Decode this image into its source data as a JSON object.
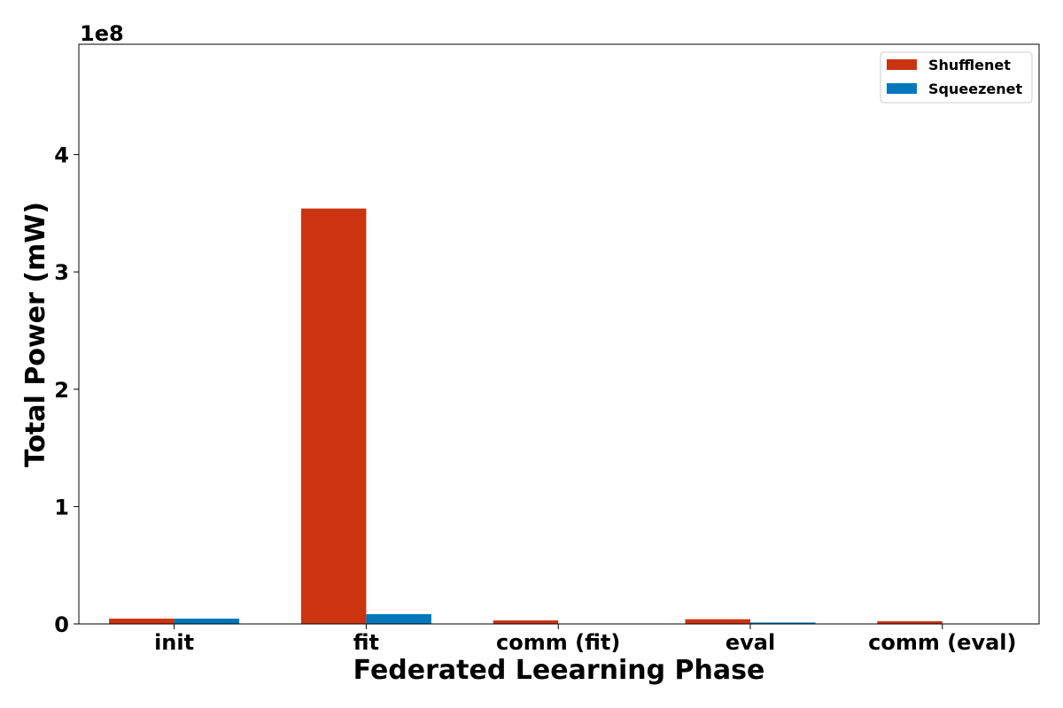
{
  "chart_data": {
    "type": "bar",
    "title": "",
    "xlabel": "Federated Leearning Phase",
    "ylabel": "Total Power (mW)",
    "y_multiplier_label": "1e8",
    "y_scale": 100000000,
    "categories": [
      "init",
      "fit",
      "comm (fit)",
      "eval",
      "comm (eval)"
    ],
    "series": [
      {
        "name": "Shufflenet",
        "color": "#cc3311",
        "values": [
          4500000,
          354000000,
          3000000,
          4000000,
          2300000
        ]
      },
      {
        "name": "Squeezenet",
        "color": "#0077bb",
        "values": [
          4500000,
          8300000,
          150000,
          1200000,
          100000
        ]
      }
    ],
    "ylim": [
      0,
      494000000
    ],
    "yticks": [
      0,
      1,
      2,
      3,
      4
    ],
    "grid": false,
    "legend_position": "top-right"
  }
}
